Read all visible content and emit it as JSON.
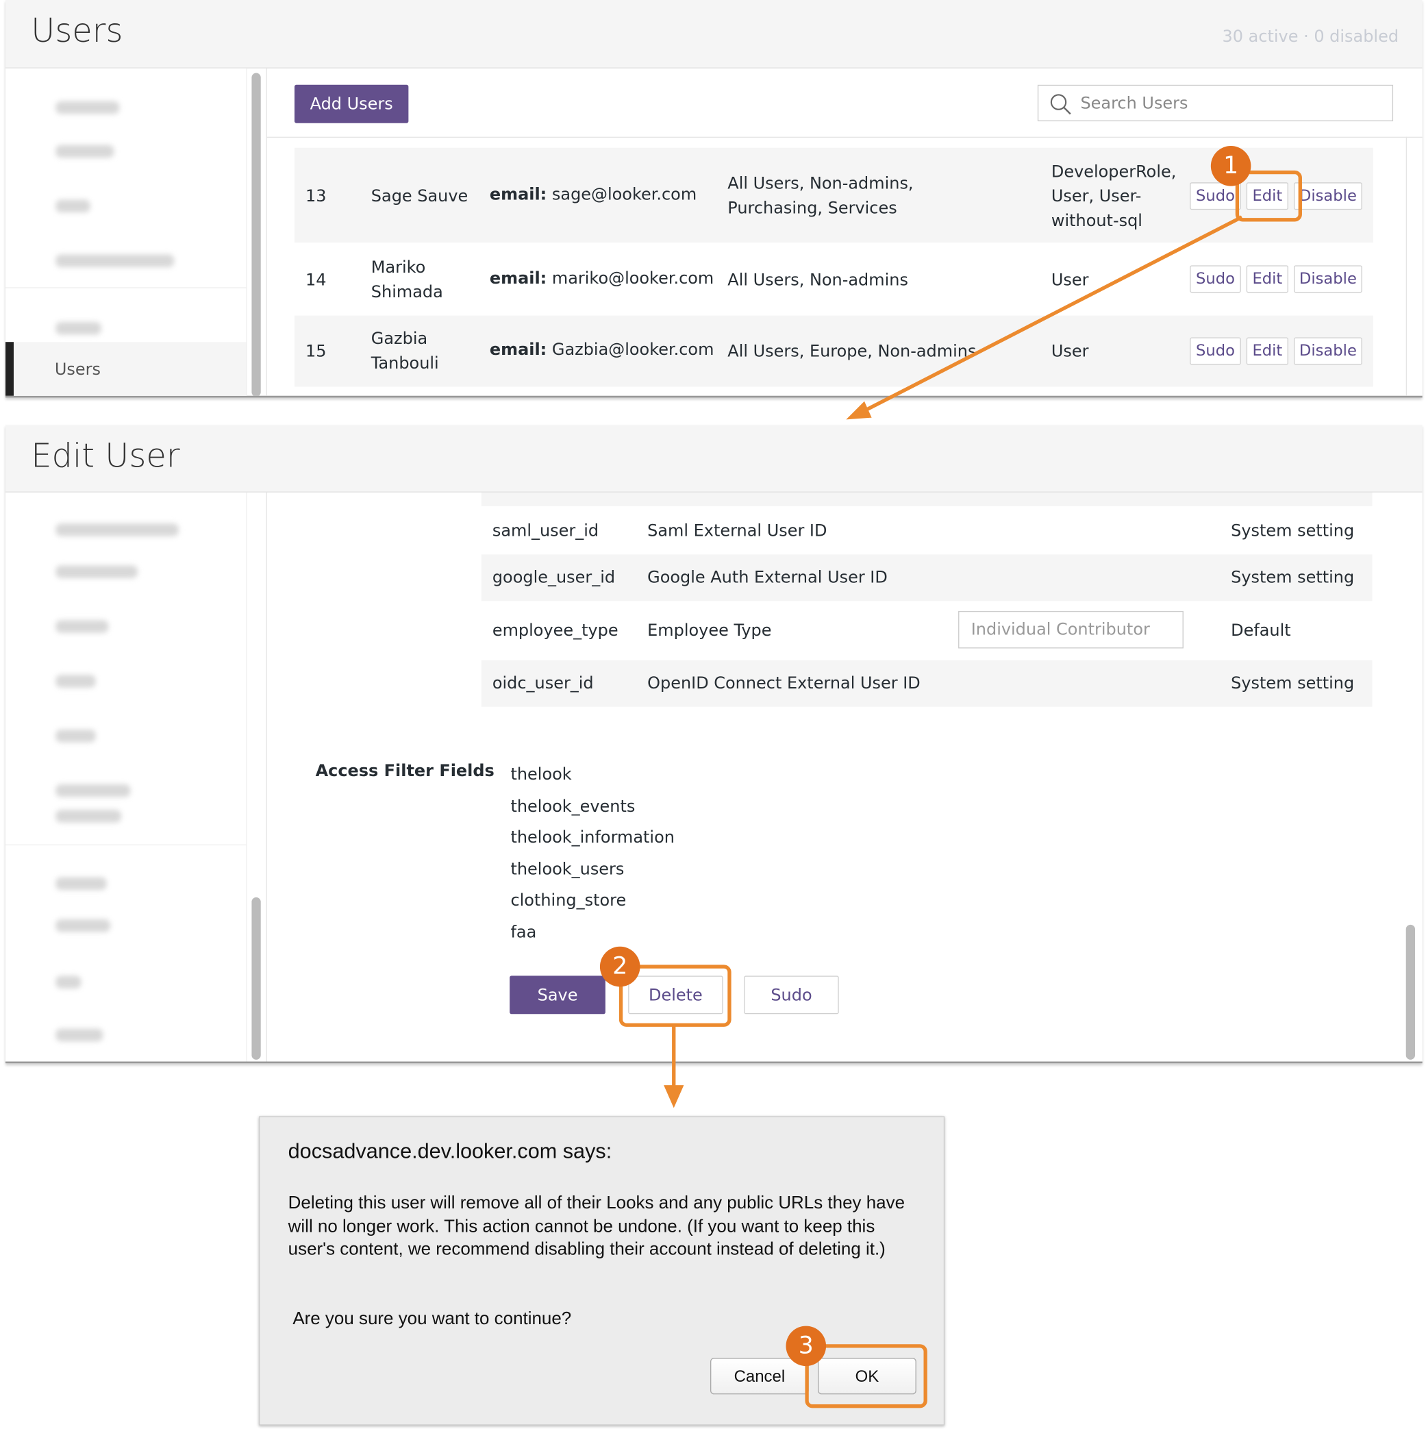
{
  "users_panel": {
    "title": "Users",
    "status": "30 active · 0 disabled",
    "add_users": "Add Users",
    "search_placeholder": "Search Users",
    "sidebar_active": "Users",
    "rows": [
      {
        "id": "13",
        "name": "Sage Sauve",
        "email_label": "email:",
        "email": "sage@looker.com",
        "groups": "All Users, Non-admins, Purchasing, Services",
        "roles": "DeveloperRole, User, User-without-sql"
      },
      {
        "id": "14",
        "name": "Mariko Shimada",
        "email_label": "email:",
        "email": "mariko@looker.com",
        "groups": "All Users, Non-admins",
        "roles": "User"
      },
      {
        "id": "15",
        "name": "Gazbia Tanbouli",
        "email_label": "email:",
        "email": "Gazbia@looker.com",
        "groups": "All Users, Europe, Non-admins",
        "roles": "User"
      }
    ],
    "actions": {
      "sudo": "Sudo",
      "edit": "Edit",
      "disable": "Disable"
    }
  },
  "edit_panel": {
    "title": "Edit User",
    "fields": [
      {
        "name": "saml_user_id",
        "label": "Saml External User ID",
        "value": "",
        "source": "System setting"
      },
      {
        "name": "google_user_id",
        "label": "Google Auth External User ID",
        "value": "",
        "source": "System setting"
      },
      {
        "name": "employee_type",
        "label": "Employee Type",
        "value": "Individual Contributor",
        "source": "Default"
      },
      {
        "name": "oidc_user_id",
        "label": "OpenID Connect External User ID",
        "value": "",
        "source": "System setting"
      }
    ],
    "access_filter_label": "Access Filter Fields",
    "access_filters": [
      "thelook",
      "thelook_events",
      "thelook_information",
      "thelook_users",
      "clothing_store",
      "faa"
    ],
    "save": "Save",
    "delete": "Delete",
    "sudo": "Sudo"
  },
  "dialog": {
    "title": "docsadvance.dev.looker.com says:",
    "message": "Deleting this user will remove all of their Looks and any public URLs they have will no longer work. This action cannot be undone. (If you want to keep this user's content, we recommend disabling their account instead of deleting it.)",
    "question": "Are you sure you want to continue?",
    "cancel": "Cancel",
    "ok": "OK"
  },
  "callouts": [
    "1",
    "2",
    "3"
  ],
  "colors": {
    "brand": "#634f8c",
    "callout": "#e2701e",
    "highlight": "#ec8a2e"
  }
}
